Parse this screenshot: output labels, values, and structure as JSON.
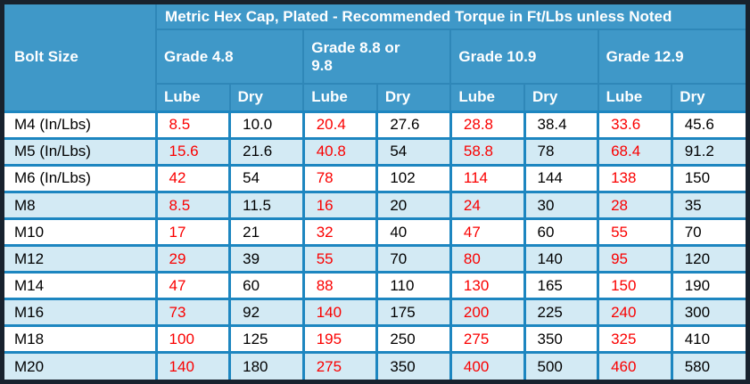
{
  "chart_data": {
    "type": "table",
    "title": "Metric Hex Cap, Plated - Recommended Torque in Ft/Lbs unless Noted",
    "bolt_size_header": "Bolt Size",
    "grade_headers": [
      "Grade 4.8",
      "Grade 8.8 or 9.8",
      "Grade 10.9",
      "Grade 12.9"
    ],
    "sub_headers": [
      "Lube",
      "Dry"
    ],
    "rows": [
      {
        "bolt": "M4 (In/Lbs)",
        "values": [
          "8.5",
          "10.0",
          "20.4",
          "27.6",
          "28.8",
          "38.4",
          "33.6",
          "45.6"
        ]
      },
      {
        "bolt": "M5 (In/Lbs)",
        "values": [
          "15.6",
          "21.6",
          "40.8",
          "54",
          "58.8",
          "78",
          "68.4",
          "91.2"
        ]
      },
      {
        "bolt": "M6 (In/Lbs)",
        "values": [
          "42",
          "54",
          "78",
          "102",
          "114",
          "144",
          "138",
          "150"
        ]
      },
      {
        "bolt": "M8",
        "values": [
          "8.5",
          "11.5",
          "16",
          "20",
          "24",
          "30",
          "28",
          "35"
        ]
      },
      {
        "bolt": "M10",
        "values": [
          "17",
          "21",
          "32",
          "40",
          "47",
          "60",
          "55",
          "70"
        ]
      },
      {
        "bolt": "M12",
        "values": [
          "29",
          "39",
          "55",
          "70",
          "80",
          "140",
          "95",
          "120"
        ]
      },
      {
        "bolt": "M14",
        "values": [
          "47",
          "60",
          "88",
          "110",
          "130",
          "165",
          "150",
          "190"
        ]
      },
      {
        "bolt": "M16",
        "values": [
          "73",
          "92",
          "140",
          "175",
          "200",
          "225",
          "240",
          "300"
        ]
      },
      {
        "bolt": "M18",
        "values": [
          "100",
          "125",
          "195",
          "250",
          "275",
          "350",
          "325",
          "410"
        ]
      },
      {
        "bolt": "M20",
        "values": [
          "140",
          "180",
          "275",
          "350",
          "400",
          "500",
          "460",
          "580"
        ]
      }
    ],
    "layout": {
      "legend_position": "none",
      "grid": "on",
      "lube_columns_color_coded": true
    }
  },
  "colors": {
    "outer_border": "#18222e",
    "header_bg": "#3f98c8",
    "header_line": "#2f87b8",
    "grid": "#1d86c0",
    "alt_row": "#d3eaf4",
    "lube_text": "#fa0000",
    "dry_text": "#000000",
    "header_text": "#ffffff"
  }
}
